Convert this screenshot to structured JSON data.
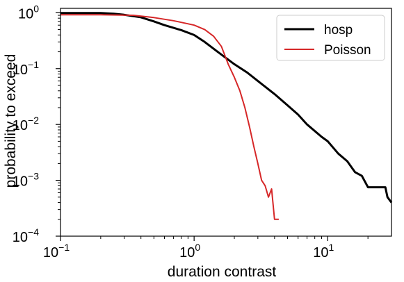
{
  "chart_data": {
    "type": "line",
    "title": "",
    "xlabel": "duration contrast",
    "ylabel": "probability to exceed",
    "xscale": "log",
    "yscale": "log",
    "xlim": [
      0.1,
      30
    ],
    "ylim": [
      0.0001,
      1.2
    ],
    "x_ticks": [
      {
        "base": "10",
        "exp": "−1",
        "value": 0.1
      },
      {
        "base": "10",
        "exp": "0",
        "value": 1
      },
      {
        "base": "10",
        "exp": "1",
        "value": 10
      }
    ],
    "y_ticks": [
      {
        "base": "10",
        "exp": "0",
        "value": 1
      },
      {
        "base": "10",
        "exp": "−1",
        "value": 0.1
      },
      {
        "base": "10",
        "exp": "−2",
        "value": 0.01
      },
      {
        "base": "10",
        "exp": "−3",
        "value": 0.001
      },
      {
        "base": "10",
        "exp": "−4",
        "value": 0.0001
      }
    ],
    "grid": false,
    "legend_position": "top-right",
    "series": [
      {
        "name": "hosp",
        "color": "#000000",
        "points": [
          [
            0.1,
            0.99
          ],
          [
            0.2,
            0.99
          ],
          [
            0.25,
            0.96
          ],
          [
            0.3,
            0.92
          ],
          [
            0.4,
            0.83
          ],
          [
            0.5,
            0.7
          ],
          [
            0.6,
            0.6
          ],
          [
            0.8,
            0.49
          ],
          [
            1.0,
            0.4
          ],
          [
            1.2,
            0.3
          ],
          [
            1.5,
            0.2
          ],
          [
            2.0,
            0.12
          ],
          [
            2.5,
            0.085
          ],
          [
            3.0,
            0.06
          ],
          [
            4.0,
            0.035
          ],
          [
            5.0,
            0.022
          ],
          [
            6.0,
            0.015
          ],
          [
            7.0,
            0.01
          ],
          [
            9.0,
            0.006
          ],
          [
            10.0,
            0.005
          ],
          [
            12.0,
            0.003
          ],
          [
            14.0,
            0.0022
          ],
          [
            16.0,
            0.0014
          ],
          [
            18.0,
            0.0012
          ],
          [
            20.0,
            0.00075
          ],
          [
            22.0,
            0.00075
          ],
          [
            27.0,
            0.00075
          ],
          [
            28.0,
            0.0005
          ],
          [
            30.0,
            0.0004
          ]
        ]
      },
      {
        "name": "Poisson",
        "color": "#d62728",
        "points": [
          [
            0.1,
            0.92
          ],
          [
            0.2,
            0.92
          ],
          [
            0.35,
            0.9
          ],
          [
            0.5,
            0.82
          ],
          [
            0.7,
            0.72
          ],
          [
            1.0,
            0.6
          ],
          [
            1.2,
            0.5
          ],
          [
            1.4,
            0.38
          ],
          [
            1.6,
            0.25
          ],
          [
            1.8,
            0.12
          ],
          [
            2.0,
            0.07
          ],
          [
            2.2,
            0.04
          ],
          [
            2.4,
            0.02
          ],
          [
            2.6,
            0.009
          ],
          [
            2.8,
            0.004
          ],
          [
            3.0,
            0.002
          ],
          [
            3.2,
            0.001
          ],
          [
            3.4,
            0.0008
          ],
          [
            3.6,
            0.0005
          ],
          [
            3.8,
            0.0007
          ],
          [
            4.0,
            0.0002
          ],
          [
            4.3,
            0.0002
          ]
        ]
      }
    ]
  }
}
